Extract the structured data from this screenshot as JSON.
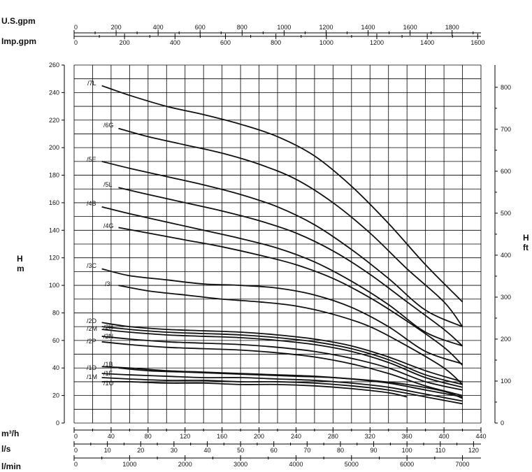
{
  "chart_data": {
    "type": "line",
    "title": "",
    "x_unit": "m³/h",
    "y_unit_left": "H\nm",
    "y_unit_right": "H\nft",
    "xlim": [
      0,
      440
    ],
    "ylim": [
      0,
      260
    ],
    "grid": true,
    "ticks": {
      "usgpm": {
        "label": "U.S.gpm",
        "labels": [
          "0",
          "200",
          "400",
          "600",
          "800",
          "1000",
          "1200",
          "1400",
          "1600",
          "1800"
        ],
        "values": [
          0,
          200,
          400,
          600,
          800,
          1000,
          1200,
          1400,
          1600,
          1800
        ]
      },
      "impgpm": {
        "label": "Imp.gpm",
        "labels": [
          "0",
          "200",
          "400",
          "600",
          "800",
          "1000",
          "1200",
          "1400",
          "1600"
        ],
        "values": [
          0,
          200,
          400,
          600,
          800,
          1000,
          1200,
          1400,
          1600
        ]
      },
      "m3h": {
        "label": "m³/h",
        "labels": [
          "0",
          "40",
          "80",
          "120",
          "160",
          "200",
          "240",
          "280",
          "320",
          "360",
          "400",
          "440"
        ],
        "values": [
          0,
          40,
          80,
          120,
          160,
          200,
          240,
          280,
          320,
          360,
          400,
          440
        ]
      },
      "ls": {
        "label": "l/s",
        "labels": [
          "0",
          "10",
          "20",
          "30",
          "40",
          "50",
          "60",
          "70",
          "80",
          "90",
          "100",
          "110",
          "120"
        ],
        "values": [
          0,
          10,
          20,
          30,
          40,
          50,
          60,
          70,
          80,
          90,
          100,
          110,
          120
        ]
      },
      "lmin": {
        "label": "l/min",
        "labels": [
          "0",
          "1000",
          "2000",
          "3000",
          "4000",
          "5000",
          "6000",
          "7000"
        ],
        "values": [
          0,
          1000,
          2000,
          3000,
          4000,
          5000,
          6000,
          7000
        ]
      },
      "left": {
        "labels": [
          "0",
          "20",
          "40",
          "60",
          "80",
          "100",
          "120",
          "140",
          "160",
          "180",
          "200",
          "220",
          "240",
          "260"
        ],
        "values": [
          0,
          20,
          40,
          60,
          80,
          100,
          120,
          140,
          160,
          180,
          200,
          220,
          240,
          260
        ]
      },
      "right": {
        "labels": [
          "0",
          "100",
          "200",
          "300",
          "400",
          "500",
          "600",
          "700",
          "800"
        ],
        "values": [
          0,
          100,
          200,
          300,
          400,
          500,
          600,
          700,
          800
        ]
      }
    },
    "series": [
      {
        "name": "/7L",
        "x": [
          30,
          60,
          100,
          140,
          180,
          220,
          260,
          300,
          340,
          380,
          420
        ],
        "y": [
          245,
          238,
          230,
          224,
          217,
          208,
          194,
          172,
          145,
          115,
          88
        ]
      },
      {
        "name": "/6G",
        "x": [
          48,
          80,
          120,
          160,
          200,
          240,
          280,
          320,
          360,
          400,
          420
        ],
        "y": [
          214,
          208,
          202,
          196,
          188,
          177,
          160,
          138,
          112,
          88,
          70
        ]
      },
      {
        "name": "/5E",
        "x": [
          30,
          60,
          100,
          140,
          180,
          220,
          260,
          300,
          340,
          380,
          420
        ],
        "y": [
          190,
          185,
          179,
          173,
          166,
          157,
          144,
          126,
          105,
          82,
          70
        ]
      },
      {
        "name": "/5L",
        "x": [
          48,
          80,
          120,
          160,
          200,
          240,
          280,
          320,
          360,
          400,
          420
        ],
        "y": [
          171,
          166,
          160,
          154,
          147,
          138,
          125,
          108,
          88,
          68,
          56
        ]
      },
      {
        "name": "/4B",
        "x": [
          30,
          60,
          100,
          140,
          180,
          220,
          260,
          300,
          340,
          380,
          420
        ],
        "y": [
          157,
          152,
          146,
          140,
          134,
          127,
          117,
          103,
          86,
          66,
          56
        ]
      },
      {
        "name": "/4G",
        "x": [
          48,
          80,
          120,
          160,
          200,
          240,
          280,
          320,
          360,
          400,
          420
        ],
        "y": [
          142,
          138,
          133,
          128,
          122,
          115,
          105,
          91,
          74,
          55,
          42
        ]
      },
      {
        "name": "/3C",
        "x": [
          30,
          60,
          100,
          140,
          180,
          220,
          260,
          300,
          340,
          380,
          420
        ],
        "y": [
          112,
          107,
          104,
          101,
          100,
          98,
          93,
          84,
          70,
          52,
          43
        ]
      },
      {
        "name": "/3I",
        "x": [
          48,
          80,
          120,
          160,
          200,
          240,
          280,
          320,
          360,
          400,
          420
        ],
        "y": [
          100,
          96,
          93,
          90,
          88,
          85,
          79,
          70,
          56,
          40,
          28
        ]
      },
      {
        "name": "/2D",
        "x": [
          30,
          60,
          100,
          140,
          180,
          220,
          260,
          300,
          340,
          380,
          420
        ],
        "y": [
          73,
          70,
          68,
          67,
          66,
          64,
          61,
          56,
          48,
          38,
          30
        ]
      },
      {
        "name": "/2H",
        "x": [
          30,
          60,
          100,
          140,
          180,
          220,
          260,
          300,
          340,
          380,
          420
        ],
        "y": [
          70,
          68,
          66,
          65,
          64,
          62,
          59,
          54,
          46,
          35,
          28
        ]
      },
      {
        "name": "/2M",
        "x": [
          30,
          60,
          100,
          140,
          180,
          220,
          260,
          300,
          340,
          380,
          420
        ],
        "y": [
          68,
          66,
          64,
          63,
          62,
          60,
          57,
          52,
          44,
          33,
          26
        ]
      },
      {
        "name": "/2N",
        "x": [
          30,
          60,
          100,
          140,
          180,
          220,
          260,
          300,
          340,
          380,
          420
        ],
        "y": [
          63,
          61,
          59,
          58,
          57,
          55,
          52,
          47,
          40,
          30,
          24
        ]
      },
      {
        "name": "/2P",
        "x": [
          30,
          60,
          100,
          140,
          180,
          220,
          260,
          300,
          340,
          380,
          420
        ],
        "y": [
          59,
          57,
          55,
          54,
          53,
          51,
          48,
          43,
          36,
          27,
          20
        ]
      },
      {
        "name": "/1D",
        "x": [
          30,
          60,
          100,
          140,
          180,
          220,
          260,
          300,
          340,
          380,
          420
        ],
        "y": [
          41,
          40,
          38,
          37,
          36,
          35,
          34,
          32,
          29,
          24,
          19
        ]
      },
      {
        "name": "/1B",
        "x": [
          48,
          80,
          120,
          160,
          200,
          240,
          280,
          320,
          360,
          400,
          420
        ],
        "y": [
          40,
          38,
          37,
          36,
          35,
          34,
          33,
          31,
          28,
          23,
          18
        ]
      },
      {
        "name": "/1F",
        "x": [
          30,
          60,
          100,
          140,
          180,
          220,
          260,
          300,
          340,
          380,
          420
        ],
        "y": [
          36,
          35,
          34,
          33,
          33,
          32,
          31,
          29,
          26,
          21,
          16
        ]
      },
      {
        "name": "/1M",
        "x": [
          30,
          60,
          100,
          140,
          180,
          220,
          260,
          300,
          340,
          380,
          420
        ],
        "y": [
          33,
          32,
          31,
          31,
          30,
          30,
          29,
          27,
          24,
          19,
          14
        ]
      },
      {
        "name": "/1O",
        "x": [
          30,
          60,
          100,
          140,
          180,
          220,
          260,
          300,
          340,
          360
        ],
        "y": [
          30,
          30,
          29,
          29,
          28,
          28,
          27,
          25,
          22,
          19
        ]
      }
    ]
  }
}
